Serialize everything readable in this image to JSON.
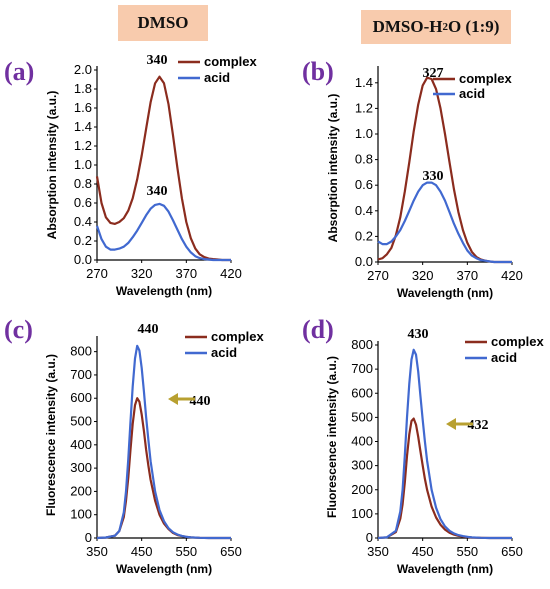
{
  "headers": {
    "left": "DMSO",
    "right_main": "DMSO-H",
    "right_sub": "2",
    "right_tail": "O (1:9)"
  },
  "colors": {
    "complex": "#8b2c1e",
    "acid": "#4169d0",
    "arrow": "#b8a030",
    "label": "#7030a0"
  },
  "chart_data": [
    {
      "type": "line",
      "panel_label": "(a)",
      "xlabel": "Wavelength (nm)",
      "ylabel": "Absorption intensity (a.u.)",
      "xlim": [
        270,
        420
      ],
      "ylim": [
        0,
        2.0
      ],
      "xticks": [
        270,
        320,
        370,
        420
      ],
      "yticks": [
        "0.0",
        "0.2",
        "0.4",
        "0.6",
        "0.8",
        "1.0",
        "1.2",
        "1.4",
        "1.6",
        "1.8",
        "2.0"
      ],
      "legend_position": "top-right",
      "series": [
        {
          "name": "complex",
          "x": [
            270,
            275,
            280,
            285,
            290,
            295,
            300,
            305,
            310,
            315,
            320,
            325,
            330,
            335,
            340,
            345,
            350,
            355,
            360,
            365,
            370,
            375,
            380,
            385,
            390,
            395,
            400,
            405,
            410,
            415,
            420
          ],
          "y": [
            0.88,
            0.6,
            0.45,
            0.39,
            0.38,
            0.4,
            0.44,
            0.52,
            0.65,
            0.85,
            1.1,
            1.38,
            1.66,
            1.86,
            1.93,
            1.86,
            1.64,
            1.32,
            0.97,
            0.65,
            0.4,
            0.23,
            0.12,
            0.06,
            0.03,
            0.015,
            0.01,
            0.005,
            0.0,
            0.0,
            0.0
          ]
        },
        {
          "name": "acid",
          "x": [
            270,
            275,
            280,
            285,
            290,
            295,
            300,
            305,
            310,
            315,
            320,
            325,
            330,
            335,
            340,
            345,
            350,
            355,
            360,
            365,
            370,
            375,
            380,
            385,
            390,
            395,
            400,
            405,
            410,
            415,
            420
          ],
          "y": [
            0.36,
            0.22,
            0.14,
            0.11,
            0.11,
            0.12,
            0.14,
            0.18,
            0.24,
            0.31,
            0.39,
            0.47,
            0.54,
            0.58,
            0.59,
            0.57,
            0.51,
            0.42,
            0.32,
            0.22,
            0.14,
            0.08,
            0.04,
            0.02,
            0.01,
            0.005,
            0.0,
            0.0,
            0.0,
            0.0,
            0.0
          ]
        }
      ],
      "annotations": [
        "340",
        "340"
      ]
    },
    {
      "type": "line",
      "panel_label": "(b)",
      "xlabel": "Wavelength (nm)",
      "ylabel": "Absorption intensity (a.u.)",
      "xlim": [
        270,
        420
      ],
      "ylim": [
        0,
        1.5
      ],
      "xticks": [
        270,
        320,
        370,
        420
      ],
      "yticks": [
        "0.0",
        "0.2",
        "0.4",
        "0.6",
        "0.8",
        "1.0",
        "1.2",
        "1.4"
      ],
      "legend_position": "top-right",
      "series": [
        {
          "name": "complex",
          "x": [
            270,
            275,
            280,
            285,
            290,
            295,
            300,
            305,
            310,
            315,
            320,
            325,
            330,
            335,
            340,
            345,
            350,
            355,
            360,
            365,
            370,
            375,
            380,
            385,
            390,
            395,
            400,
            405,
            410,
            415,
            420
          ],
          "y": [
            0.02,
            0.03,
            0.06,
            0.11,
            0.21,
            0.35,
            0.55,
            0.78,
            1.02,
            1.23,
            1.38,
            1.44,
            1.43,
            1.35,
            1.2,
            1.0,
            0.78,
            0.57,
            0.39,
            0.25,
            0.15,
            0.08,
            0.04,
            0.02,
            0.01,
            0.005,
            0.0,
            0.0,
            0.0,
            0.0,
            0.0
          ]
        },
        {
          "name": "acid",
          "x": [
            270,
            275,
            280,
            285,
            290,
            295,
            300,
            305,
            310,
            315,
            320,
            325,
            330,
            335,
            340,
            345,
            350,
            355,
            360,
            365,
            370,
            375,
            380,
            385,
            390,
            395,
            400,
            405,
            410,
            415,
            420
          ],
          "y": [
            0.16,
            0.14,
            0.14,
            0.16,
            0.2,
            0.25,
            0.32,
            0.4,
            0.48,
            0.55,
            0.6,
            0.62,
            0.62,
            0.6,
            0.55,
            0.48,
            0.39,
            0.3,
            0.22,
            0.15,
            0.09,
            0.05,
            0.03,
            0.015,
            0.01,
            0.005,
            0.0,
            0.0,
            0.0,
            0.0,
            0.0
          ]
        }
      ],
      "annotations": [
        "327",
        "330"
      ]
    },
    {
      "type": "line",
      "panel_label": "(c)",
      "xlabel": "Wavelength (nm)",
      "ylabel": "Fluorescence intensity (a.u.)",
      "xlim": [
        350,
        650
      ],
      "ylim": [
        0,
        850
      ],
      "xticks": [
        350,
        450,
        550,
        650
      ],
      "yticks": [
        "0",
        "100",
        "200",
        "300",
        "400",
        "500",
        "600",
        "700",
        "800"
      ],
      "legend_position": "top-right",
      "series": [
        {
          "name": "complex",
          "x": [
            350,
            370,
            390,
            400,
            410,
            415,
            420,
            425,
            430,
            435,
            440,
            445,
            450,
            455,
            460,
            465,
            470,
            480,
            490,
            500,
            510,
            520,
            530,
            540,
            550,
            560,
            580,
            600,
            620,
            650
          ],
          "y": [
            0,
            2,
            10,
            30,
            90,
            160,
            260,
            380,
            490,
            570,
            600,
            585,
            530,
            460,
            380,
            310,
            250,
            160,
            100,
            62,
            38,
            22,
            13,
            8,
            5,
            3,
            1,
            0,
            0,
            0
          ]
        },
        {
          "name": "acid",
          "x": [
            350,
            370,
            390,
            400,
            410,
            415,
            420,
            425,
            430,
            435,
            440,
            445,
            450,
            455,
            460,
            465,
            470,
            480,
            490,
            500,
            510,
            520,
            530,
            540,
            550,
            560,
            580,
            600,
            620,
            650
          ],
          "y": [
            0,
            2,
            10,
            30,
            110,
            200,
            340,
            500,
            650,
            770,
            825,
            805,
            730,
            630,
            520,
            420,
            330,
            200,
            120,
            72,
            42,
            25,
            15,
            9,
            5,
            3,
            1,
            0,
            0,
            0
          ]
        }
      ],
      "annotations": [
        "440",
        "440"
      ]
    },
    {
      "type": "line",
      "panel_label": "(d)",
      "xlabel": "Wavelength (nm)",
      "ylabel": "Fluorescence intensity (a.u.)",
      "xlim": [
        350,
        650
      ],
      "ylim": [
        0,
        800
      ],
      "xticks": [
        350,
        450,
        550,
        650
      ],
      "yticks": [
        "0",
        "100",
        "200",
        "300",
        "400",
        "500",
        "600",
        "700",
        "800"
      ],
      "legend_position": "top-right",
      "series": [
        {
          "name": "complex",
          "x": [
            350,
            370,
            390,
            400,
            405,
            410,
            415,
            420,
            425,
            430,
            435,
            440,
            445,
            450,
            455,
            460,
            470,
            480,
            490,
            500,
            510,
            520,
            530,
            540,
            550,
            560,
            580,
            600,
            620,
            650
          ],
          "y": [
            0,
            3,
            25,
            80,
            140,
            230,
            340,
            430,
            485,
            495,
            470,
            420,
            360,
            300,
            245,
            200,
            130,
            85,
            55,
            35,
            22,
            14,
            9,
            6,
            4,
            2,
            1,
            0,
            0,
            0
          ]
        },
        {
          "name": "acid",
          "x": [
            350,
            370,
            390,
            400,
            405,
            410,
            415,
            420,
            425,
            430,
            435,
            440,
            445,
            450,
            455,
            460,
            470,
            480,
            490,
            500,
            510,
            520,
            530,
            540,
            550,
            560,
            580,
            600,
            620,
            650
          ],
          "y": [
            0,
            3,
            30,
            110,
            200,
            340,
            500,
            640,
            740,
            780,
            760,
            690,
            590,
            490,
            400,
            320,
            200,
            125,
            78,
            48,
            30,
            19,
            12,
            8,
            5,
            3,
            1,
            0,
            0,
            0
          ]
        }
      ],
      "annotations": [
        "430",
        "432"
      ]
    }
  ]
}
